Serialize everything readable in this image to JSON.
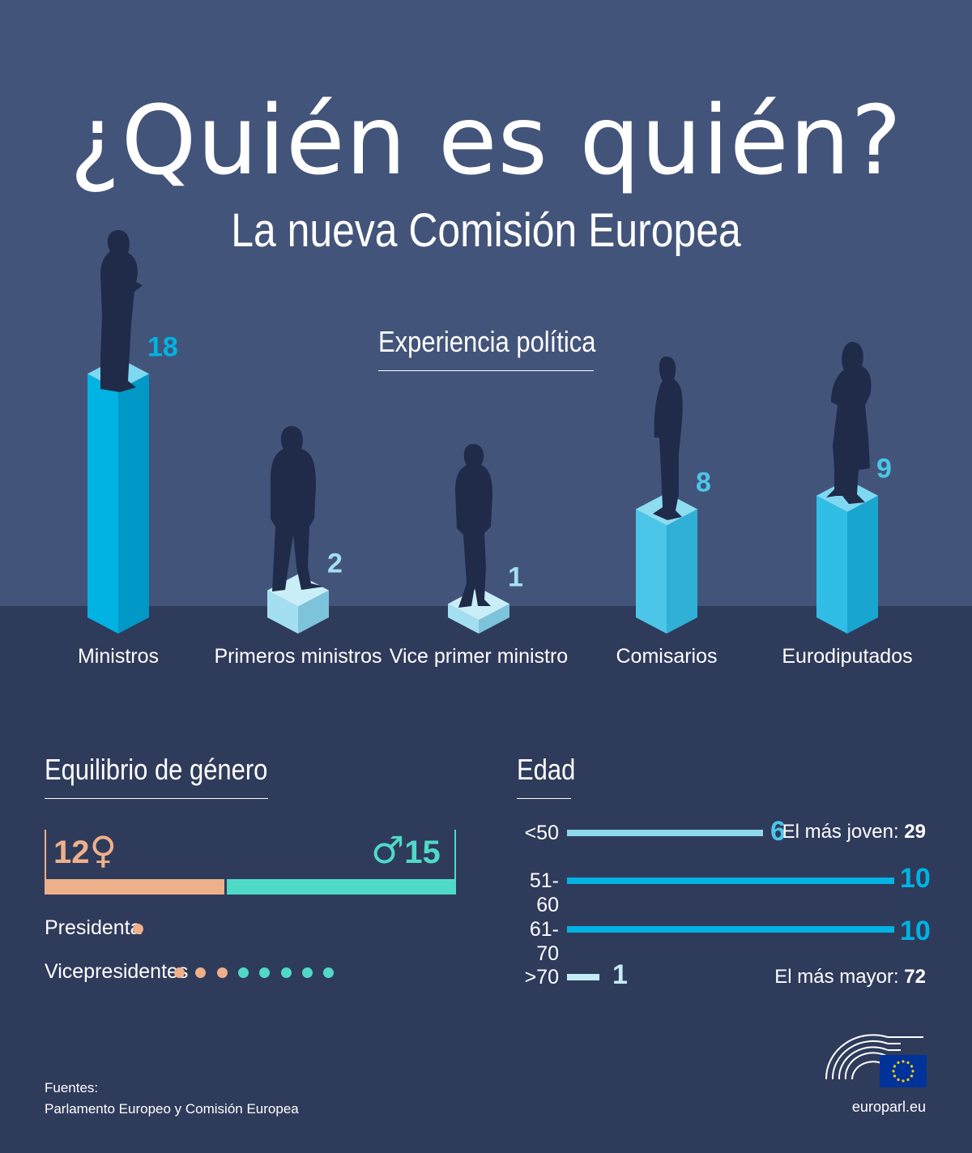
{
  "title": "¿Quién es quién?",
  "subtitle": "La nueva Comisión Europea",
  "colors": {
    "bg_top": "#43547a",
    "bg_bottom": "#2f3b5b",
    "bar_light": "#8fd7ec",
    "bar_mid": "#4cc6e8",
    "bar_dark": "#00b3e3",
    "female": "#eeb08a",
    "male": "#4fdac8",
    "silhouette": "#1f2b48"
  },
  "experience": {
    "heading": "Experiencia política"
  },
  "chart_data": {
    "type": "bar",
    "categories": [
      "Ministros",
      "Primeros ministros",
      "Vice primer ministro",
      "Comisarios",
      "Eurodiputados"
    ],
    "values": [
      18,
      2,
      1,
      8,
      9
    ]
  },
  "gender": {
    "heading": "Equilibrio de género",
    "female_count": "12",
    "male_count": "15",
    "female_symbol": "♀",
    "male_symbol": "♂",
    "female_fraction": 0.444,
    "presidenta_label": "Presidenta",
    "presidenta": {
      "female": 1,
      "male": 0
    },
    "vp_label": "Vicepresidentes",
    "vicepresidentes": {
      "female": 3,
      "male": 5
    }
  },
  "age": {
    "heading": "Edad",
    "groups": [
      {
        "label": "<50",
        "value": "6"
      },
      {
        "label": "51-60",
        "value": "10"
      },
      {
        "label": "61-70",
        "value": "10"
      },
      {
        "label": ">70",
        "value": "1"
      }
    ],
    "youngest_label": "El más joven:",
    "youngest_value": "29",
    "oldest_label": "El más mayor:",
    "oldest_value": "72"
  },
  "footer": {
    "sources_label": "Fuentes:",
    "sources_text": "Parlamento Europeo y Comisión Europea",
    "site": "europarl.eu"
  }
}
